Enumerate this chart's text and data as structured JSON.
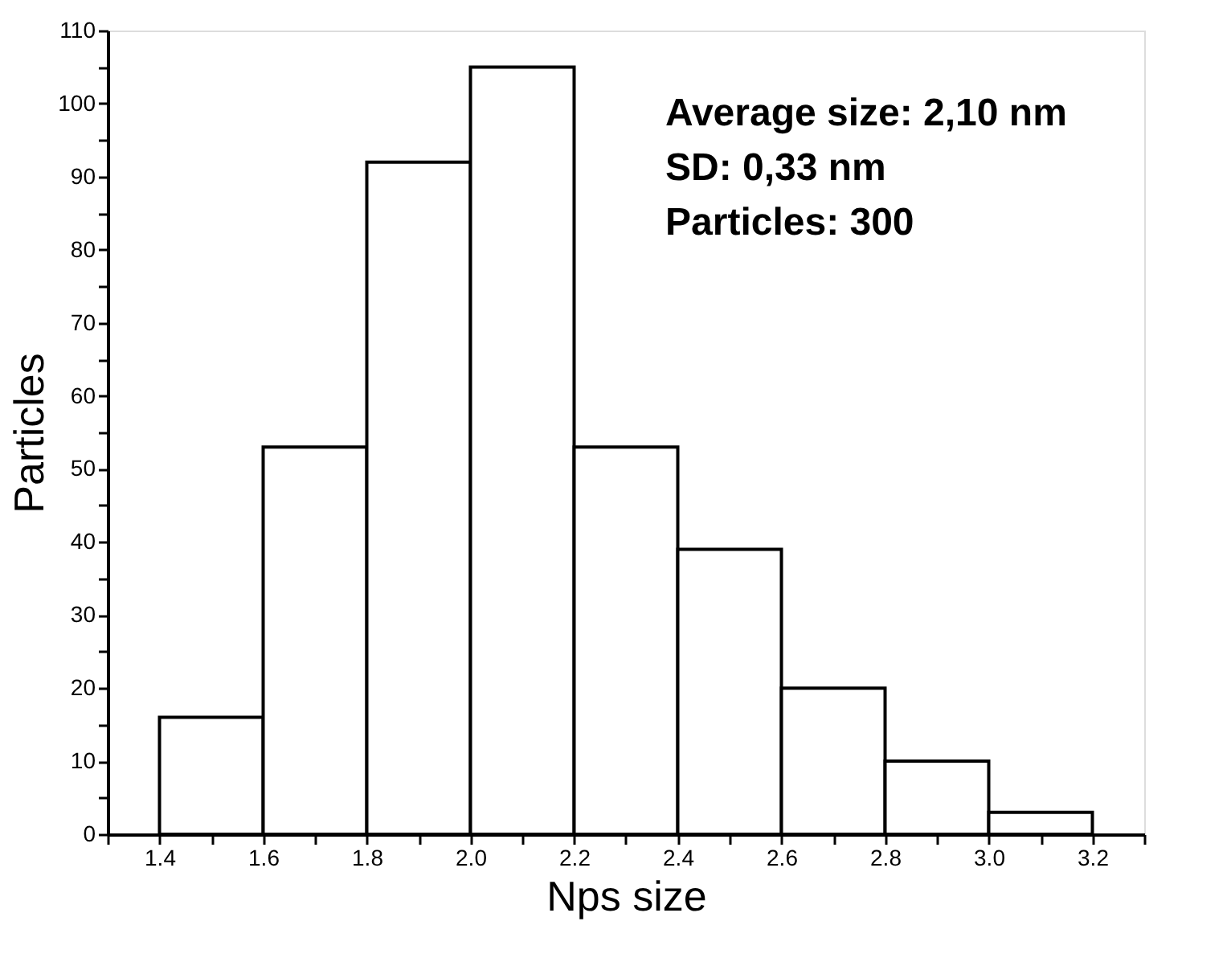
{
  "chart_data": {
    "type": "histogram",
    "xlabel": "Nps size",
    "ylabel": "Particles",
    "bins": [
      1.4,
      1.6,
      1.8,
      2.0,
      2.2,
      2.4,
      2.6,
      2.8,
      3.0,
      3.2
    ],
    "values": [
      16,
      53,
      92,
      105,
      53,
      39,
      20,
      10,
      3
    ],
    "color": "#ffffff",
    "xlim": [
      1.3,
      3.3
    ],
    "xticks": [
      {
        "value": 1.3,
        "label": null
      },
      {
        "value": 1.4,
        "label": "1.4"
      },
      {
        "value": 1.5,
        "label": null
      },
      {
        "value": 1.6,
        "label": "1.6"
      },
      {
        "value": 1.7,
        "label": null
      },
      {
        "value": 1.8,
        "label": "1.8"
      },
      {
        "value": 1.9,
        "label": null
      },
      {
        "value": 2.0,
        "label": "2.0"
      },
      {
        "value": 2.1,
        "label": null
      },
      {
        "value": 2.2,
        "label": "2.2"
      },
      {
        "value": 2.3,
        "label": null
      },
      {
        "value": 2.4,
        "label": "2.4"
      },
      {
        "value": 2.5,
        "label": null
      },
      {
        "value": 2.6,
        "label": "2.6"
      },
      {
        "value": 2.7,
        "label": null
      },
      {
        "value": 2.8,
        "label": "2.8"
      },
      {
        "value": 2.9,
        "label": null
      },
      {
        "value": 3.0,
        "label": "3.0"
      },
      {
        "value": 3.1,
        "label": null
      },
      {
        "value": 3.2,
        "label": "3.2"
      },
      {
        "value": 3.3,
        "label": null
      }
    ],
    "ylim": [
      0,
      110
    ],
    "yticks": [
      0,
      {
        "value": 5,
        "label": null
      },
      10,
      {
        "value": 15,
        "label": null
      },
      20,
      {
        "value": 25,
        "label": null
      },
      30,
      {
        "value": 35,
        "label": null
      },
      40,
      {
        "value": 45,
        "label": null
      },
      50,
      {
        "value": 55,
        "label": null
      },
      60,
      {
        "value": 65,
        "label": null
      },
      70,
      {
        "value": 75,
        "label": null
      },
      80,
      {
        "value": 85,
        "label": null
      },
      90,
      {
        "value": 95,
        "label": null
      },
      100,
      {
        "value": 105,
        "label": null
      },
      110
    ],
    "grid": false,
    "annotations": [
      "Average size: 2,10 nm",
      "SD: 0,33 nm",
      "Particles: 300"
    ]
  }
}
